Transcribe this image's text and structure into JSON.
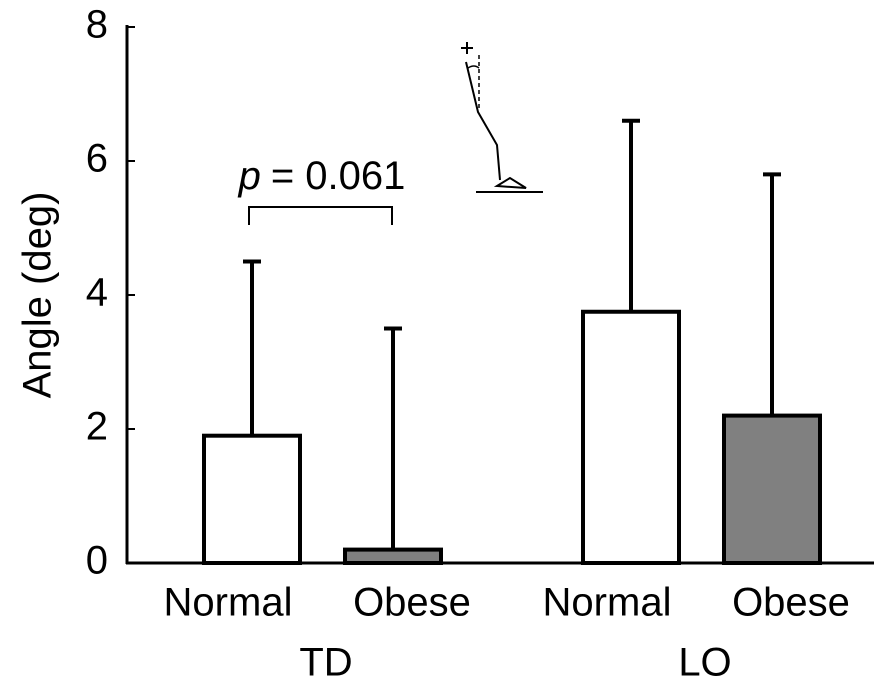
{
  "chart_data": {
    "type": "bar",
    "y_label": "Angle (deg)",
    "categories": [
      "TD",
      "LO"
    ],
    "series": [
      {
        "name": "Normal",
        "color": "#ffffff",
        "values": [
          1.9,
          3.75
        ],
        "errors": [
          2.6,
          2.85
        ]
      },
      {
        "name": "Obese",
        "color": "#808080",
        "values": [
          0.2,
          2.2
        ],
        "errors": [
          3.3,
          3.6
        ]
      }
    ],
    "ylim": [
      0,
      8
    ],
    "yticks": [
      0,
      2,
      4,
      6,
      8
    ],
    "annotation": {
      "italic": "p",
      "text": "= 0.061"
    }
  }
}
